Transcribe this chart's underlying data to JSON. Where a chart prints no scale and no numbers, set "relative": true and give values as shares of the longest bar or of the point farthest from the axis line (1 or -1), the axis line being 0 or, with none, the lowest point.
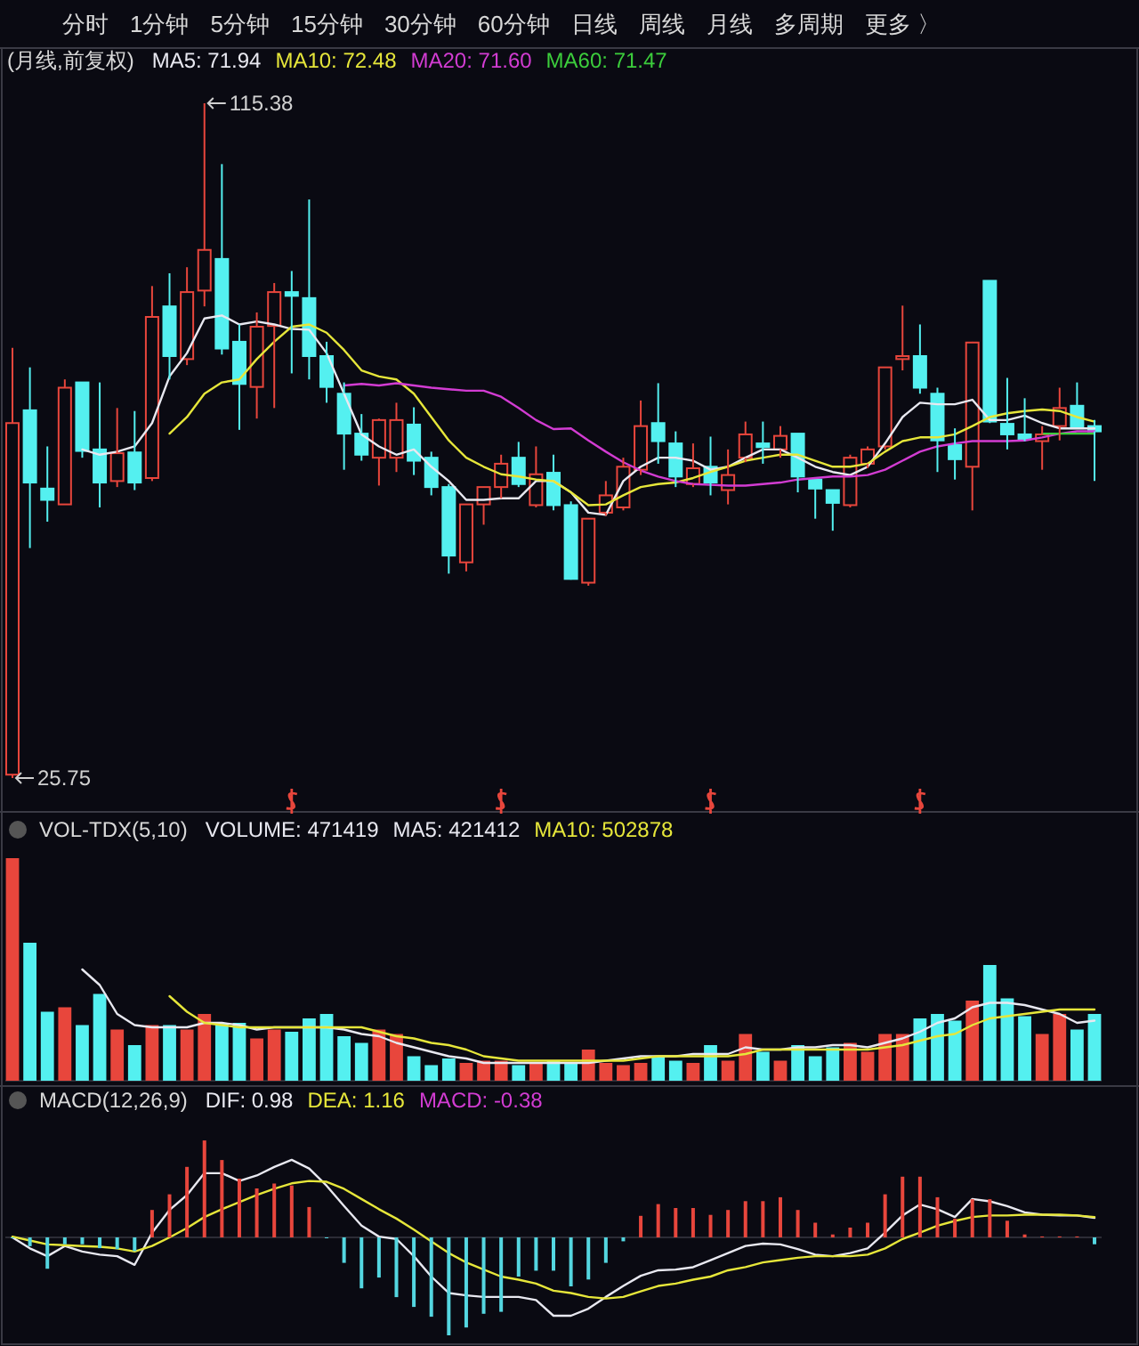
{
  "chart_data": [
    {
      "type": "candlestick",
      "title": "(月线,前复权)",
      "categories": [
        null,
        null,
        null,
        null,
        null,
        null,
        null,
        null,
        null,
        null,
        null,
        null,
        null,
        null,
        null,
        null,
        null,
        null,
        null,
        null,
        null,
        null,
        null,
        null,
        null,
        null,
        null,
        null,
        null,
        null,
        null,
        null,
        null,
        null,
        null,
        null,
        null,
        null,
        null,
        null,
        null,
        null,
        null,
        null,
        null,
        null,
        null,
        null,
        null,
        null,
        null,
        null,
        null,
        null,
        null,
        null,
        null,
        null,
        null,
        null,
        null,
        null,
        null
      ],
      "ohlc": [
        [
          26.2,
          82.9,
          25.75,
          72.9
        ],
        [
          74.6,
          80.3,
          56.3,
          65.0
        ],
        [
          64.2,
          69.8,
          59.8,
          62.7
        ],
        [
          62.1,
          78.7,
          62.1,
          77.6
        ],
        [
          78.3,
          78.3,
          68.3,
          69.2
        ],
        [
          69.4,
          78.3,
          61.7,
          65.0
        ],
        [
          65.2,
          74.9,
          64.4,
          68.9
        ],
        [
          69.0,
          74.5,
          64.0,
          65.0
        ],
        [
          65.6,
          91.1,
          65.2,
          87.0
        ],
        [
          88.4,
          92.8,
          78.7,
          81.8
        ],
        [
          81.4,
          93.6,
          80.6,
          90.3
        ],
        [
          90.5,
          115.38,
          88.4,
          95.9
        ],
        [
          94.7,
          107.3,
          82.0,
          82.8
        ],
        [
          83.7,
          86.0,
          72.0,
          78.1
        ],
        [
          77.7,
          87.6,
          73.5,
          85.7
        ],
        [
          85.8,
          91.5,
          74.9,
          90.3
        ],
        [
          90.3,
          93.1,
          79.5,
          89.8
        ],
        [
          89.5,
          102.6,
          78.7,
          81.8
        ],
        [
          81.8,
          83.7,
          75.6,
          77.7
        ],
        [
          76.8,
          78.3,
          66.7,
          71.5
        ],
        [
          71.5,
          74.1,
          67.9,
          68.7
        ],
        [
          68.3,
          73.5,
          64.6,
          73.3
        ],
        [
          68.3,
          75.6,
          66.4,
          73.3
        ],
        [
          72.7,
          75.0,
          66.0,
          67.9
        ],
        [
          68.3,
          69.1,
          63.3,
          64.4
        ],
        [
          64.4,
          64.8,
          52.9,
          55.3
        ],
        [
          54.4,
          62.1,
          53.2,
          62.1
        ],
        [
          62.1,
          64.4,
          59.4,
          64.4
        ],
        [
          64.4,
          68.7,
          62.9,
          67.5
        ],
        [
          68.3,
          70.4,
          64.4,
          64.8
        ],
        [
          62.0,
          69.8,
          61.7,
          66.1
        ],
        [
          66.3,
          68.7,
          61.3,
          62.0
        ],
        [
          62.0,
          62.5,
          52.1,
          52.2
        ],
        [
          51.7,
          60.2,
          51.3,
          60.2
        ],
        [
          61.0,
          65.2,
          60.6,
          63.3
        ],
        [
          61.7,
          68.3,
          61.3,
          67.1
        ],
        [
          66.7,
          75.9,
          66.0,
          72.5
        ],
        [
          72.9,
          78.2,
          67.5,
          70.5
        ],
        [
          70.2,
          71.8,
          64.4,
          65.8
        ],
        [
          64.8,
          70.2,
          64.4,
          66.9
        ],
        [
          67.1,
          71.1,
          63.3,
          65.0
        ],
        [
          64.0,
          69.4,
          62.1,
          66.0
        ],
        [
          68.3,
          73.1,
          67.7,
          71.4
        ],
        [
          70.2,
          73.1,
          67.5,
          69.7
        ],
        [
          69.4,
          72.5,
          68.3,
          71.2
        ],
        [
          71.5,
          71.5,
          63.7,
          65.8
        ],
        [
          65.4,
          65.4,
          60.2,
          64.2
        ],
        [
          64.0,
          64.0,
          58.6,
          62.3
        ],
        [
          62.0,
          68.7,
          61.7,
          68.3
        ],
        [
          67.5,
          69.8,
          66.9,
          69.4
        ],
        [
          69.8,
          80.3,
          69.4,
          80.3
        ],
        [
          81.4,
          88.5,
          79.9,
          81.8
        ],
        [
          81.8,
          86.0,
          76.8,
          77.6
        ],
        [
          76.8,
          77.6,
          66.4,
          70.6
        ],
        [
          70.0,
          72.2,
          65.4,
          68.1
        ],
        [
          67.1,
          83.7,
          61.3,
          83.6
        ],
        [
          91.8,
          91.8,
          72.9,
          73.1
        ],
        [
          72.8,
          78.9,
          69.4,
          71.4
        ],
        [
          71.4,
          76.2,
          70.5,
          70.8
        ],
        [
          70.5,
          72.5,
          66.7,
          71.4
        ],
        [
          72.5,
          77.6,
          70.6,
          74.9
        ],
        [
          75.2,
          78.3,
          72.2,
          72.2
        ],
        [
          72.5,
          73.3,
          65.2,
          71.8
        ]
      ],
      "colors": [
        "#e8463c",
        "#54f0f0",
        "#54f0f0",
        "#e8463c",
        "#54f0f0",
        "#54f0f0",
        "#e8463c",
        "#54f0f0",
        "#e8463c",
        "#54f0f0",
        "#e8463c",
        "#e8463c",
        "#54f0f0",
        "#54f0f0",
        "#e8463c",
        "#e8463c",
        "#54f0f0",
        "#54f0f0",
        "#54f0f0",
        "#54f0f0",
        "#54f0f0",
        "#e8463c",
        "#e8463c",
        "#54f0f0",
        "#54f0f0",
        "#54f0f0",
        "#e8463c",
        "#e8463c",
        "#e8463c",
        "#54f0f0",
        "#e8463c",
        "#54f0f0",
        "#54f0f0",
        "#e8463c",
        "#e8463c",
        "#e8463c",
        "#e8463c",
        "#54f0f0",
        "#54f0f0",
        "#e8463c",
        "#54f0f0",
        "#e8463c",
        "#e8463c",
        "#54f0f0",
        "#e8463c",
        "#54f0f0",
        "#54f0f0",
        "#54f0f0",
        "#e8463c",
        "#e8463c",
        "#e8463c",
        "#e8463c",
        "#54f0f0",
        "#54f0f0",
        "#54f0f0",
        "#e8463c",
        "#54f0f0",
        "#54f0f0",
        "#54f0f0",
        "#e8463c",
        "#e8463c",
        "#54f0f0",
        "#54f0f0"
      ],
      "series": [
        {
          "type": "line",
          "name": "MA5: 71.94",
          "color": "#e8e8f0",
          "values": [
            null,
            null,
            null,
            null,
            69.4,
            68.7,
            69.1,
            69.8,
            72.9,
            79.1,
            82.2,
            86.8,
            87.2,
            86.0,
            86.4,
            86.0,
            85.4,
            85.3,
            82.2,
            76.8,
            71.4,
            69.8,
            68.7,
            69.4,
            67.1,
            65.2,
            62.7,
            62.7,
            62.9,
            62.9,
            65.2,
            65.2,
            63.7,
            61.0,
            60.7,
            65.2,
            67.1,
            68.3,
            68.3,
            67.9,
            66.7,
            67.1,
            68.3,
            69.4,
            69.4,
            68.3,
            67.1,
            66.4,
            66.0,
            67.1,
            70.2,
            73.7,
            75.6,
            75.4,
            75.4,
            76.0,
            73.3,
            73.3,
            73.9,
            72.9,
            72.2,
            72.2,
            72.2
          ]
        },
        {
          "type": "line",
          "name": "MA10: 72.48",
          "color": "#e6e63a",
          "values": [
            null,
            null,
            null,
            null,
            null,
            null,
            null,
            null,
            null,
            71.5,
            73.7,
            76.8,
            78.3,
            78.7,
            81.4,
            83.7,
            85.7,
            86.0,
            84.9,
            82.6,
            79.9,
            79.1,
            78.7,
            76.8,
            73.7,
            70.6,
            68.3,
            67.1,
            66.1,
            65.8,
            65.4,
            65.2,
            63.7,
            62.0,
            62.1,
            63.3,
            64.4,
            64.8,
            65.0,
            65.6,
            66.4,
            67.1,
            67.9,
            68.3,
            68.7,
            68.7,
            67.9,
            67.1,
            67.1,
            67.5,
            69.1,
            70.5,
            71.0,
            71.0,
            71.4,
            72.5,
            73.7,
            74.2,
            74.5,
            74.7,
            74.5,
            73.7,
            73.1
          ]
        },
        {
          "type": "line",
          "name": "MA20: 71.60",
          "color": "#d23cd2",
          "values": [
            null,
            null,
            null,
            null,
            null,
            null,
            null,
            null,
            null,
            null,
            null,
            null,
            null,
            null,
            null,
            null,
            null,
            null,
            null,
            77.9,
            78.1,
            77.9,
            78.2,
            77.9,
            77.6,
            77.4,
            77.2,
            77.2,
            76.4,
            74.9,
            73.3,
            72.1,
            72.2,
            70.6,
            69.1,
            67.7,
            66.6,
            65.8,
            65.2,
            64.8,
            64.7,
            64.6,
            64.6,
            64.8,
            65.0,
            65.4,
            65.6,
            65.8,
            65.8,
            66.0,
            66.7,
            67.9,
            69.1,
            69.8,
            70.2,
            70.5,
            70.5,
            70.5,
            70.6,
            71.0,
            71.5,
            71.8,
            71.8
          ]
        },
        {
          "type": "line",
          "name": "MA60: 71.47",
          "color": "#3ccd3c",
          "values": [
            null,
            null,
            null,
            null,
            null,
            null,
            null,
            null,
            null,
            null,
            null,
            null,
            null,
            null,
            null,
            null,
            null,
            null,
            null,
            null,
            null,
            null,
            null,
            null,
            null,
            null,
            null,
            null,
            null,
            null,
            null,
            null,
            null,
            null,
            null,
            null,
            null,
            null,
            null,
            null,
            null,
            null,
            null,
            null,
            null,
            null,
            null,
            null,
            null,
            null,
            null,
            null,
            null,
            null,
            null,
            null,
            null,
            null,
            null,
            71.5,
            71.5,
            71.5,
            71.5
          ]
        }
      ],
      "annotations": [
        "分时",
        "1分钟",
        "5分钟",
        "15分钟",
        "30分钟",
        "60分钟",
        "日线",
        "周线",
        "月线",
        "多周期",
        "更多 〉",
        "115.38",
        "25.75"
      ]
    },
    {
      "type": "bar",
      "title": "VOL-TDX(5,10)",
      "relative": true,
      "categories": [
        null,
        null,
        null,
        null,
        null,
        null,
        null,
        null,
        null,
        null,
        null,
        null,
        null,
        null,
        null,
        null,
        null,
        null,
        null,
        null,
        null,
        null,
        null,
        null,
        null,
        null,
        null,
        null,
        null,
        null,
        null,
        null,
        null,
        null,
        null,
        null,
        null,
        null,
        null,
        null,
        null,
        null,
        null,
        null,
        null,
        null,
        null,
        null,
        null,
        null,
        null,
        null,
        null,
        null,
        null,
        null,
        null,
        null,
        null,
        null,
        null,
        null,
        null
      ],
      "series": [
        {
          "name": "VOLUME: 471419",
          "values": [
            1.0,
            0.62,
            0.31,
            0.33,
            0.25,
            0.39,
            0.23,
            0.16,
            0.25,
            0.25,
            0.23,
            0.3,
            0.26,
            0.26,
            0.19,
            0.23,
            0.22,
            0.28,
            0.3,
            0.2,
            0.17,
            0.23,
            0.21,
            0.11,
            0.07,
            0.1,
            0.08,
            0.09,
            0.09,
            0.07,
            0.08,
            0.09,
            0.08,
            0.14,
            0.08,
            0.07,
            0.08,
            0.11,
            0.09,
            0.08,
            0.16,
            0.09,
            0.21,
            0.13,
            0.09,
            0.16,
            0.11,
            0.15,
            0.17,
            0.13,
            0.21,
            0.21,
            0.28,
            0.3,
            0.27,
            0.36,
            0.52,
            0.37,
            0.29,
            0.21,
            0.3,
            0.23,
            0.3
          ],
          "colors": [
            "#e8463c",
            "#54f0f0",
            "#54f0f0",
            "#e8463c",
            "#54f0f0",
            "#54f0f0",
            "#e8463c",
            "#54f0f0",
            "#e8463c",
            "#54f0f0",
            "#e8463c",
            "#e8463c",
            "#54f0f0",
            "#54f0f0",
            "#e8463c",
            "#e8463c",
            "#54f0f0",
            "#54f0f0",
            "#54f0f0",
            "#54f0f0",
            "#54f0f0",
            "#e8463c",
            "#e8463c",
            "#54f0f0",
            "#54f0f0",
            "#54f0f0",
            "#e8463c",
            "#e8463c",
            "#e8463c",
            "#54f0f0",
            "#e8463c",
            "#54f0f0",
            "#54f0f0",
            "#e8463c",
            "#e8463c",
            "#e8463c",
            "#e8463c",
            "#54f0f0",
            "#54f0f0",
            "#e8463c",
            "#54f0f0",
            "#e8463c",
            "#e8463c",
            "#54f0f0",
            "#e8463c",
            "#54f0f0",
            "#54f0f0",
            "#54f0f0",
            "#e8463c",
            "#e8463c",
            "#e8463c",
            "#e8463c",
            "#54f0f0",
            "#54f0f0",
            "#54f0f0",
            "#e8463c",
            "#54f0f0",
            "#54f0f0",
            "#54f0f0",
            "#e8463c",
            "#e8463c",
            "#54f0f0",
            "#54f0f0"
          ]
        }
      ]
    },
    {
      "type": "line",
      "relative": true,
      "categories": [
        null,
        null,
        null,
        null,
        null,
        null,
        null,
        null,
        null,
        null,
        null,
        null,
        null,
        null,
        null,
        null,
        null,
        null,
        null,
        null,
        null,
        null,
        null,
        null,
        null,
        null,
        null,
        null,
        null,
        null,
        null,
        null,
        null,
        null,
        null,
        null,
        null,
        null,
        null,
        null,
        null,
        null,
        null,
        null,
        null,
        null,
        null,
        null,
        null,
        null,
        null,
        null,
        null,
        null,
        null,
        null,
        null,
        null,
        null,
        null,
        null,
        null,
        null
      ],
      "series": [
        {
          "name": "MA5: 421412",
          "color": "#e8e8f0",
          "values": [
            null,
            null,
            null,
            null,
            1.0,
            0.86,
            0.6,
            0.5,
            0.48,
            0.48,
            0.48,
            0.52,
            0.52,
            0.5,
            0.46,
            0.48,
            0.48,
            0.48,
            0.48,
            0.46,
            0.42,
            0.4,
            0.34,
            0.3,
            0.26,
            0.22,
            0.2,
            0.16,
            0.16,
            0.16,
            0.16,
            0.16,
            0.16,
            0.16,
            0.18,
            0.2,
            0.22,
            0.22,
            0.22,
            0.24,
            0.24,
            0.24,
            0.3,
            0.28,
            0.28,
            0.3,
            0.3,
            0.32,
            0.32,
            0.3,
            0.34,
            0.38,
            0.44,
            0.52,
            0.56,
            0.66,
            0.7,
            0.7,
            0.68,
            0.64,
            0.6,
            0.52,
            0.54
          ]
        },
        {
          "name": "MA10: 502878",
          "color": "#e6e63a",
          "values": [
            null,
            null,
            null,
            null,
            null,
            null,
            null,
            null,
            null,
            0.76,
            0.62,
            0.52,
            0.5,
            0.48,
            0.48,
            0.48,
            0.48,
            0.48,
            0.48,
            0.48,
            0.48,
            0.44,
            0.4,
            0.38,
            0.34,
            0.32,
            0.28,
            0.22,
            0.2,
            0.18,
            0.18,
            0.18,
            0.18,
            0.18,
            0.18,
            0.18,
            0.2,
            0.22,
            0.22,
            0.22,
            0.22,
            0.22,
            0.24,
            0.28,
            0.28,
            0.28,
            0.28,
            0.28,
            0.28,
            0.28,
            0.3,
            0.32,
            0.36,
            0.4,
            0.42,
            0.5,
            0.56,
            0.58,
            0.6,
            0.62,
            0.64,
            0.64,
            0.64
          ]
        }
      ]
    },
    {
      "type": "line",
      "title": "MACD(12,26,9)",
      "relative": true,
      "categories": [
        null,
        null,
        null,
        null,
        null,
        null,
        null,
        null,
        null,
        null,
        null,
        null,
        null,
        null,
        null,
        null,
        null,
        null,
        null,
        null,
        null,
        null,
        null,
        null,
        null,
        null,
        null,
        null,
        null,
        null,
        null,
        null,
        null,
        null,
        null,
        null,
        null,
        null,
        null,
        null,
        null,
        null,
        null,
        null,
        null,
        null,
        null,
        null,
        null,
        null,
        null,
        null,
        null,
        null,
        null,
        null,
        null,
        null,
        null,
        null,
        null,
        null,
        null
      ],
      "series": [
        {
          "name": "DIF: 0.98",
          "color": "#e8e8f0",
          "values": [
            0,
            -0.14,
            -0.24,
            -0.11,
            -0.18,
            -0.22,
            -0.24,
            -0.35,
            0.06,
            0.35,
            0.54,
            0.82,
            0.82,
            0.72,
            0.79,
            0.9,
            0.99,
            0.88,
            0.66,
            0.4,
            0.15,
            0.01,
            -0.02,
            -0.24,
            -0.5,
            -0.71,
            -0.74,
            -0.76,
            -0.76,
            -0.76,
            -0.8,
            -1.0,
            -1.0,
            -0.91,
            -0.76,
            -0.62,
            -0.49,
            -0.42,
            -0.41,
            -0.38,
            -0.29,
            -0.2,
            -0.11,
            -0.08,
            -0.09,
            -0.15,
            -0.22,
            -0.24,
            -0.2,
            -0.14,
            0.06,
            0.28,
            0.42,
            0.36,
            0.26,
            0.49,
            0.46,
            0.4,
            0.32,
            0.29,
            0.28,
            0.28,
            0.25
          ]
        },
        {
          "name": "DEA: 1.16",
          "color": "#e6e63a",
          "values": [
            0.01,
            -0.04,
            -0.09,
            -0.1,
            -0.11,
            -0.12,
            -0.14,
            -0.18,
            -0.11,
            0,
            0.12,
            0.26,
            0.36,
            0.45,
            0.54,
            0.62,
            0.69,
            0.72,
            0.71,
            0.62,
            0.49,
            0.36,
            0.24,
            0.1,
            -0.05,
            -0.2,
            -0.32,
            -0.41,
            -0.5,
            -0.54,
            -0.59,
            -0.68,
            -0.71,
            -0.76,
            -0.78,
            -0.76,
            -0.69,
            -0.62,
            -0.59,
            -0.54,
            -0.5,
            -0.42,
            -0.38,
            -0.32,
            -0.29,
            -0.26,
            -0.24,
            -0.24,
            -0.24,
            -0.22,
            -0.14,
            -0.02,
            0.06,
            0.15,
            0.21,
            0.26,
            0.28,
            0.28,
            0.29,
            0.29,
            0.29,
            0.28,
            0.26
          ]
        }
      ]
    },
    {
      "type": "bar",
      "relative": true,
      "categories": [
        null,
        null,
        null,
        null,
        null,
        null,
        null,
        null,
        null,
        null,
        null,
        null,
        null,
        null,
        null,
        null,
        null,
        null,
        null,
        null,
        null,
        null,
        null,
        null,
        null,
        null,
        null,
        null,
        null,
        null,
        null,
        null,
        null,
        null,
        null,
        null,
        null,
        null,
        null,
        null,
        null,
        null,
        null,
        null,
        null,
        null,
        null,
        null,
        null,
        null,
        null,
        null,
        null,
        null,
        null,
        null,
        null,
        null,
        null,
        null,
        null,
        null,
        null
      ],
      "series": [
        {
          "name": "MACD: -0.38",
          "color": "#d23cd2",
          "values": [
            0,
            -0.09,
            -0.32,
            -0.07,
            -0.07,
            -0.11,
            -0.12,
            -0.14,
            0.28,
            0.44,
            0.72,
            0.99,
            0.79,
            0.6,
            0.5,
            0.55,
            0.53,
            0.31,
            0,
            -0.26,
            -0.52,
            -0.41,
            -0.61,
            -0.71,
            -0.81,
            -1.0,
            -0.92,
            -0.78,
            -0.76,
            -0.4,
            -0.34,
            -0.34,
            -0.5,
            -0.43,
            -0.26,
            -0.04,
            0.22,
            0.34,
            0.3,
            0.3,
            0.23,
            0.28,
            0.37,
            0.37,
            0.41,
            0.28,
            0.15,
            0.03,
            0.1,
            0.15,
            0.44,
            0.62,
            0.62,
            0.41,
            0.19,
            0.39,
            0.39,
            0.17,
            0.03,
            0.01,
            0.01,
            0.01,
            -0.07
          ],
          "colors": [
            "#54d6e0",
            "#54d6e0",
            "#54d6e0",
            "#54d6e0",
            "#54d6e0",
            "#54d6e0",
            "#54d6e0",
            "#54d6e0",
            "#e8463c",
            "#e8463c",
            "#e8463c",
            "#e8463c",
            "#e8463c",
            "#e8463c",
            "#e8463c",
            "#e8463c",
            "#e8463c",
            "#e8463c",
            "#54d6e0",
            "#54d6e0",
            "#54d6e0",
            "#54d6e0",
            "#54d6e0",
            "#54d6e0",
            "#54d6e0",
            "#54d6e0",
            "#54d6e0",
            "#54d6e0",
            "#54d6e0",
            "#54d6e0",
            "#54d6e0",
            "#54d6e0",
            "#54d6e0",
            "#54d6e0",
            "#54d6e0",
            "#54d6e0",
            "#e8463c",
            "#e8463c",
            "#e8463c",
            "#e8463c",
            "#e8463c",
            "#e8463c",
            "#e8463c",
            "#e8463c",
            "#e8463c",
            "#e8463c",
            "#e8463c",
            "#e8463c",
            "#e8463c",
            "#e8463c",
            "#e8463c",
            "#e8463c",
            "#e8463c",
            "#e8463c",
            "#e8463c",
            "#e8463c",
            "#e8463c",
            "#e8463c",
            "#e8463c",
            "#e8463c",
            "#e8463c",
            "#e8463c",
            "#54d6e0"
          ]
        }
      ]
    }
  ]
}
